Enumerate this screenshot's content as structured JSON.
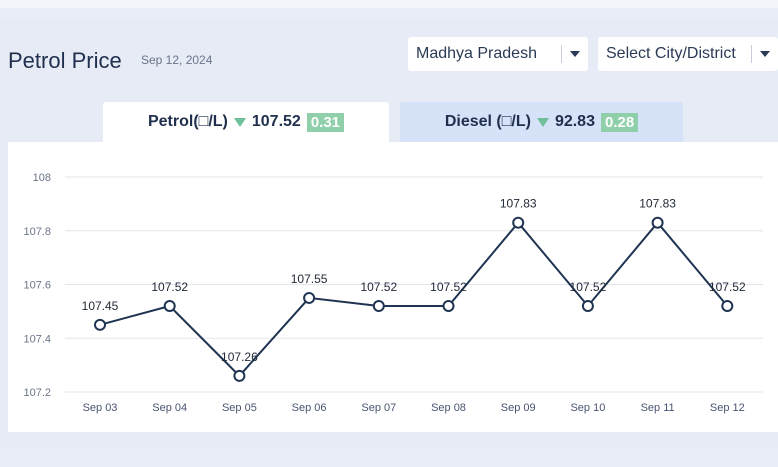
{
  "header": {
    "title": "Petrol Price",
    "date": "Sep 12, 2024",
    "state_select": "Madhya Pradesh",
    "city_select": "Select City/District"
  },
  "tabs": {
    "petrol": {
      "label": "Petrol(□/L)",
      "price": "107.52",
      "change": "0.31"
    },
    "diesel": {
      "label": "Diesel (□/L)",
      "price": "92.83",
      "change": "0.28"
    }
  },
  "colors": {
    "line": "#1f3452",
    "marker_fill": "#ffffff",
    "change_badge": "#8fcfaa",
    "down_arrow": "#6fbf9a",
    "grid": "#e3e6ec"
  },
  "chart_data": {
    "type": "line",
    "title": "",
    "xlabel": "",
    "ylabel": "",
    "categories": [
      "Sep 03",
      "Sep 04",
      "Sep 05",
      "Sep 06",
      "Sep 07",
      "Sep 08",
      "Sep 09",
      "Sep 10",
      "Sep 11",
      "Sep 12"
    ],
    "series": [
      {
        "values": [
          107.45,
          107.52,
          107.26,
          107.55,
          107.52,
          107.52,
          107.83,
          107.52,
          107.83,
          107.52
        ]
      }
    ],
    "data_labels": [
      "107.45",
      "107.52",
      "107.26",
      "107.55",
      "107.52",
      "107.52",
      "107.83",
      "107.52",
      "107.83",
      "107.52"
    ],
    "ylim": [
      107.2,
      108
    ],
    "yticks": [
      107.2,
      107.4,
      107.6,
      107.8,
      108
    ],
    "ytick_labels": [
      "107.2",
      "107.4",
      "107.6",
      "107.8",
      "108"
    ],
    "grid": true,
    "legend": "none"
  }
}
